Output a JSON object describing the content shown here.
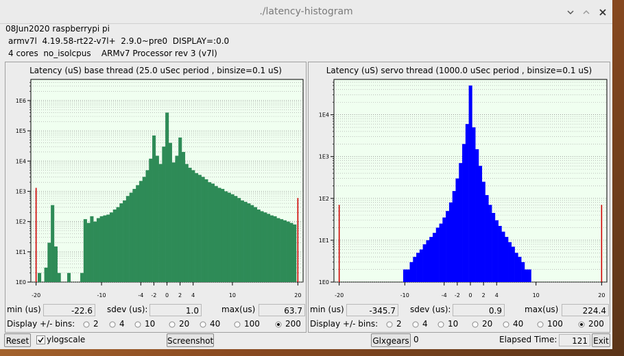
{
  "window": {
    "title": "./latency-histogram"
  },
  "info": [
    "08Jun2020 raspberrypi pi",
    "armv7l  4.19.58-rt22-v7l+  2.9.0~pre0  DISPLAY=:0.0",
    "4 cores  no_isolcpus    ARMv7 Processor rev 3 (v7l)"
  ],
  "chart_data": [
    {
      "type": "bar",
      "title": "Latency (uS) base thread (25.0 uSec period , binsize=0.1 uS)",
      "x": [
        -20,
        -19.5,
        -19,
        -18.5,
        -18,
        -17.5,
        -17,
        -16.5,
        -16,
        -15.5,
        -15,
        -14.5,
        -14,
        -13.5,
        -13,
        -12.5,
        -12,
        -11.5,
        -11,
        -10.5,
        -10,
        -9.5,
        -9,
        -8.5,
        -8,
        -7.5,
        -7,
        -6.5,
        -6,
        -5.5,
        -5,
        -4.5,
        -4,
        -3.5,
        -3,
        -2.5,
        -2,
        -1.5,
        -1,
        -0.5,
        0,
        0.5,
        1,
        1.5,
        2,
        2.5,
        3,
        3.5,
        4,
        4.5,
        5,
        5.5,
        6,
        6.5,
        7,
        7.5,
        8,
        8.5,
        9,
        9.5,
        10,
        10.5,
        11,
        11.5,
        12,
        12.5,
        13,
        13.5,
        14,
        14.5,
        15,
        15.5,
        16,
        16.5,
        17,
        17.5,
        18,
        18.5,
        19,
        19.5,
        20
      ],
      "values": [
        1300,
        2,
        1,
        3,
        20,
        350,
        15,
        2,
        1,
        1,
        2,
        1,
        0,
        1,
        2,
        120,
        90,
        150,
        100,
        130,
        150,
        160,
        170,
        200,
        250,
        300,
        400,
        500,
        700,
        900,
        1200,
        1600,
        2200,
        3000,
        5000,
        12000,
        70000,
        15000,
        8000,
        30000,
        400000,
        40000,
        9000,
        15000,
        60000,
        20000,
        8000,
        6000,
        5000,
        4000,
        3500,
        3000,
        2500,
        2000,
        1800,
        1500,
        1300,
        1200,
        1000,
        900,
        800,
        700,
        600,
        500,
        450,
        400,
        350,
        300,
        250,
        220,
        200,
        180,
        160,
        150,
        130,
        120,
        110,
        100,
        90,
        80,
        600
      ],
      "color": "#2e8b57",
      "edge_color": "#d00000",
      "background": "#f0fff0",
      "xlim": [
        -20.8,
        20.8
      ],
      "xticks": [
        -20,
        -10,
        -4,
        -2,
        0,
        2,
        4,
        10,
        20
      ],
      "ylim": [
        1,
        5000000
      ],
      "yticks": [
        {
          "value": 1,
          "label": "1E0"
        },
        {
          "value": 10,
          "label": "1E1"
        },
        {
          "value": 100,
          "label": "1E2"
        },
        {
          "value": 1000,
          "label": "1E3"
        },
        {
          "value": 10000,
          "label": "1E4"
        },
        {
          "value": 100000,
          "label": "1E5"
        },
        {
          "value": 1000000,
          "label": "1E6"
        }
      ],
      "log_y": true,
      "grid": true
    },
    {
      "type": "bar",
      "title": "Latency (uS) servo thread (1000.0 uSec period , binsize=0.1 uS)",
      "x": [
        -20,
        -19.5,
        -19,
        -18.5,
        -18,
        -17.5,
        -17,
        -16.5,
        -16,
        -15.5,
        -15,
        -14.5,
        -14,
        -13.5,
        -13,
        -12.5,
        -12,
        -11.5,
        -11,
        -10.5,
        -10,
        -9.5,
        -9,
        -8.5,
        -8,
        -7.5,
        -7,
        -6.5,
        -6,
        -5.5,
        -5,
        -4.5,
        -4,
        -3.5,
        -3,
        -2.5,
        -2,
        -1.5,
        -1,
        -0.5,
        0,
        0.5,
        1,
        1.5,
        2,
        2.5,
        3,
        3.5,
        4,
        4.5,
        5,
        5.5,
        6,
        6.5,
        7,
        7.5,
        8,
        8.5,
        9,
        9.5,
        10,
        10.5,
        11,
        11.5,
        12,
        12.5,
        13,
        13.5,
        14,
        14.5,
        15,
        15.5,
        16,
        16.5,
        17,
        17.5,
        18,
        18.5,
        19,
        19.5,
        20
      ],
      "values": [
        70,
        0,
        0,
        1,
        0,
        0,
        0,
        0,
        0,
        0,
        0,
        0,
        0,
        0,
        0,
        0,
        0,
        0,
        1,
        1,
        2,
        2,
        3,
        4,
        5,
        6,
        8,
        10,
        12,
        15,
        20,
        25,
        35,
        50,
        80,
        150,
        300,
        700,
        2000,
        6000,
        50000,
        5000,
        1500,
        600,
        250,
        120,
        70,
        45,
        30,
        22,
        16,
        12,
        9,
        7,
        5,
        4,
        3,
        2,
        2,
        1,
        1,
        0,
        0,
        0,
        0,
        0,
        0,
        0,
        0,
        0,
        0,
        0,
        0,
        0,
        0,
        0,
        1,
        0,
        0,
        0,
        70
      ],
      "color": "#0000ff",
      "edge_color": "#d00000",
      "background": "#f0fff0",
      "xlim": [
        -20.8,
        20.8
      ],
      "xticks": [
        -20,
        -10,
        -4,
        -2,
        0,
        2,
        4,
        10,
        20
      ],
      "ylim": [
        1,
        70000
      ],
      "yticks": [
        {
          "value": 1,
          "label": "1E0"
        },
        {
          "value": 10,
          "label": "1E1"
        },
        {
          "value": 100,
          "label": "1E2"
        },
        {
          "value": 1000,
          "label": "1E3"
        },
        {
          "value": 10000,
          "label": "1E4"
        }
      ],
      "log_y": true,
      "grid": true
    }
  ],
  "panels": [
    {
      "min_label": "min (us)",
      "min": "-22.6",
      "sdev_label": "sdev (us):",
      "sdev": "1.0",
      "max_label": "max(us)",
      "max": "63.7",
      "display_label": "Display +/- bins:",
      "bins_options": [
        "2",
        "4",
        "10",
        "20",
        "40",
        "100",
        "200"
      ],
      "selected_index": 6
    },
    {
      "min_label": "min (us)",
      "min": "-345.7",
      "sdev_label": "sdev (us):",
      "sdev": "0.9",
      "max_label": "max(us)",
      "max": "224.4",
      "display_label": "Display +/- bins:",
      "bins_options": [
        "2",
        "4",
        "10",
        "20",
        "40",
        "100",
        "200"
      ],
      "selected_index": 6
    }
  ],
  "controls": {
    "reset": "Reset",
    "ylogscale": "ylogscale",
    "ylogscale_checked": true,
    "screenshot": "Screenshot",
    "glxgears": "Glxgears",
    "glxgears_count": "0",
    "elapsed_label": "Elapsed Time:",
    "elapsed": "121",
    "exit": "Exit"
  }
}
